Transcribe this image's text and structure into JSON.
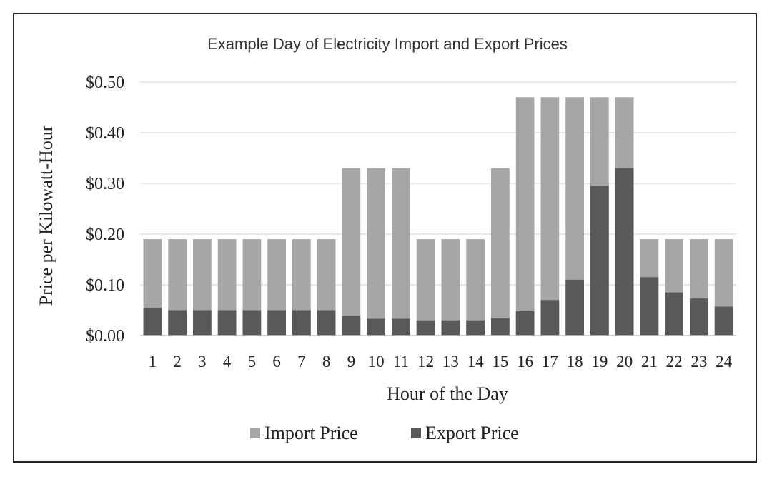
{
  "chart_data": {
    "type": "bar",
    "title": "Example Day of Electricity  Import and Export Prices",
    "xlabel": "Hour of the Day",
    "ylabel": "Price per Kilowatt-Hour",
    "ylim": [
      0,
      0.5
    ],
    "yticks": [
      "$0.00",
      "$0.10",
      "$0.20",
      "$0.30",
      "$0.40",
      "$0.50"
    ],
    "ytick_values": [
      0,
      0.1,
      0.2,
      0.3,
      0.4,
      0.5
    ],
    "grid": true,
    "legend_position": "bottom",
    "categories": [
      "1",
      "2",
      "3",
      "4",
      "5",
      "6",
      "7",
      "8",
      "9",
      "10",
      "11",
      "12",
      "13",
      "14",
      "15",
      "16",
      "17",
      "18",
      "19",
      "20",
      "21",
      "22",
      "23",
      "24"
    ],
    "series": [
      {
        "name": "Import Price",
        "color": "#a6a6a6",
        "values": [
          0.19,
          0.19,
          0.19,
          0.19,
          0.19,
          0.19,
          0.19,
          0.19,
          0.33,
          0.33,
          0.33,
          0.19,
          0.19,
          0.19,
          0.33,
          0.47,
          0.47,
          0.47,
          0.47,
          0.47,
          0.19,
          0.19,
          0.19,
          0.19
        ]
      },
      {
        "name": "Export Price",
        "color": "#595959",
        "values": [
          0.055,
          0.05,
          0.05,
          0.05,
          0.05,
          0.05,
          0.05,
          0.05,
          0.038,
          0.033,
          0.033,
          0.03,
          0.03,
          0.03,
          0.035,
          0.048,
          0.07,
          0.11,
          0.295,
          0.33,
          0.115,
          0.085,
          0.073,
          0.057
        ]
      }
    ]
  }
}
